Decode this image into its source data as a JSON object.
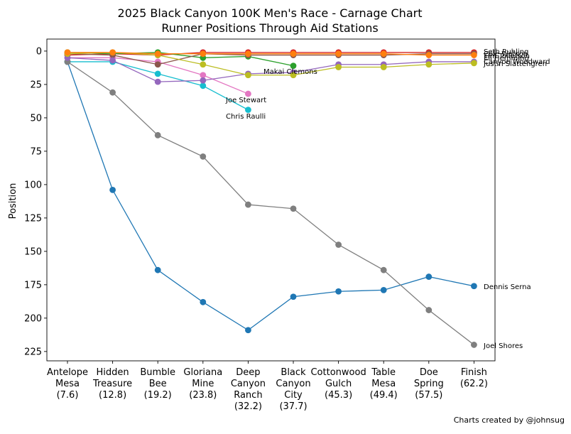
{
  "chart_data": {
    "type": "line",
    "title_line1": "2025 Black Canyon 100K Men's Race - Carnage Chart",
    "title_line2": "Runner Positions Through Aid Stations",
    "ylabel": "Position",
    "xlabel": "",
    "ylim": [
      232,
      -9
    ],
    "y_inverted": true,
    "yticks": [
      0,
      25,
      50,
      75,
      100,
      125,
      150,
      175,
      200,
      225
    ],
    "grid": false,
    "categories": [
      [
        "Antelope",
        "Mesa",
        "(7.6)"
      ],
      [
        "Hidden",
        "Treasure",
        "(12.8)"
      ],
      [
        "Bumble",
        "Bee",
        "(19.2)"
      ],
      [
        "Gloriana",
        "Mine",
        "(23.8)"
      ],
      [
        "Deep",
        "Canyon",
        "Ranch",
        "(32.2)"
      ],
      [
        "Black",
        "Canyon",
        "City",
        "(37.7)"
      ],
      [
        "Cottonwood",
        "Gulch",
        "(45.3)"
      ],
      [
        "Table",
        "Mesa",
        "(49.4)"
      ],
      [
        "Doe",
        "Spring",
        "(57.5)"
      ],
      [
        "Finish",
        "(62.2)"
      ]
    ],
    "series": [
      {
        "name": "Seth Ruhling",
        "color": "#d62728",
        "values": [
          3,
          2,
          3,
          1,
          1,
          1,
          1,
          1,
          1,
          1
        ],
        "label_offset": -2
      },
      {
        "name": "Joe Stewart",
        "color": "#e377c2",
        "values": [
          5,
          5,
          8,
          18,
          32,
          null,
          null,
          null,
          null,
          null
        ]
      },
      {
        "name": "Chris Raulli",
        "color": "#17becf",
        "values": [
          8,
          8,
          17,
          26,
          44,
          null,
          null,
          null,
          null,
          null
        ]
      },
      {
        "name": "Makai Clemons",
        "color": "#2ca02c",
        "values": [
          1,
          2,
          1,
          5,
          4,
          11,
          null,
          null,
          null,
          null
        ]
      },
      {
        "name": "Dennis Serna",
        "color": "#1f77b4",
        "values": [
          8,
          104,
          164,
          188,
          209,
          184,
          180,
          179,
          169,
          176
        ]
      },
      {
        "name": "Joel Shores",
        "color": "#7f7f7f",
        "values": [
          8,
          31,
          63,
          79,
          115,
          118,
          145,
          164,
          194,
          220
        ]
      },
      {
        "name": "Cole Watson",
        "color": "#8c564b",
        "values": [
          2,
          3,
          10,
          2,
          3,
          3,
          3,
          3,
          2,
          2
        ]
      },
      {
        "name": "Canyon Woodward",
        "color": "#9467bd",
        "values": [
          5,
          7,
          23,
          22,
          17,
          16,
          10,
          10,
          8,
          8
        ]
      },
      {
        "name": "Justin Slattengren",
        "color": "#bcbd22",
        "values": [
          2,
          1,
          3,
          10,
          18,
          18,
          12,
          12,
          10,
          9
        ]
      },
      {
        "name": "Tim Tollefson",
        "color": "#ff7f0e",
        "values": [
          1,
          1,
          2,
          2,
          2,
          2,
          2,
          2,
          3,
          3
        ]
      }
    ],
    "annotations": [
      "Seth Ruhling",
      "Cole Watson",
      "Tim Tollefson",
      "Eli Hemming",
      "Canyon Woodward",
      "Justin Slattengren",
      "Makai Clemons",
      "Joe Stewart",
      "Chris Raulli",
      "Dennis Serna",
      "Joel Shores"
    ],
    "credit": "Charts created by @johnsug"
  }
}
